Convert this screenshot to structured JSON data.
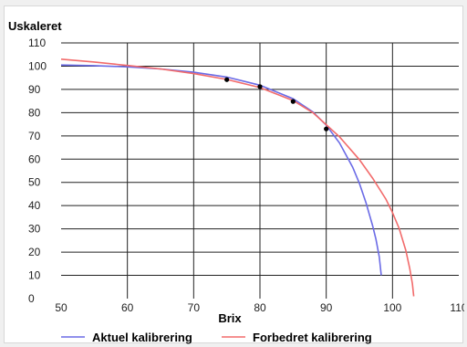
{
  "chart_data": {
    "type": "line",
    "title": "",
    "ylabel": "Uskaleret",
    "xlabel": "Brix",
    "xlim": [
      50,
      110
    ],
    "ylim": [
      0,
      110
    ],
    "xticks": [
      50,
      60,
      70,
      80,
      90,
      100,
      110
    ],
    "yticks": [
      0,
      10,
      20,
      30,
      40,
      50,
      60,
      70,
      80,
      90,
      100,
      110
    ],
    "grid": true,
    "legend_position": "bottom",
    "series": [
      {
        "name": "Aktuel kalibrering",
        "color": "#6b6be6",
        "x": [
          50,
          55,
          60,
          65,
          70,
          75,
          80,
          85,
          88,
          90,
          92,
          94,
          95,
          96,
          97,
          97.5,
          98,
          98.3
        ],
        "y": [
          100.5,
          100.2,
          99.7,
          98.8,
          97.4,
          95.3,
          91.8,
          86.0,
          80.3,
          74.6,
          67.0,
          56.5,
          49.6,
          41.2,
          31.4,
          25.5,
          18.0,
          10.0
        ]
      },
      {
        "name": "Forbedret kalibrering",
        "color": "#f26b6b",
        "x": [
          50,
          55,
          60,
          65,
          70,
          75,
          80,
          85,
          88,
          90,
          92,
          95,
          97,
          99,
          100,
          101,
          102,
          102.6,
          103,
          103.2
        ],
        "y": [
          103.0,
          101.8,
          100.3,
          98.8,
          96.8,
          94.3,
          90.8,
          85.2,
          80.0,
          74.8,
          69.6,
          59.8,
          51.8,
          42.8,
          37.0,
          30.2,
          20.8,
          13.0,
          6.5,
          1.0
        ]
      }
    ],
    "points": [
      {
        "x": 75,
        "y": 94.2
      },
      {
        "x": 80,
        "y": 91.2
      },
      {
        "x": 85,
        "y": 84.8
      },
      {
        "x": 90,
        "y": 73.0
      }
    ],
    "point_color": "#000000",
    "grid_color": "#222222"
  }
}
